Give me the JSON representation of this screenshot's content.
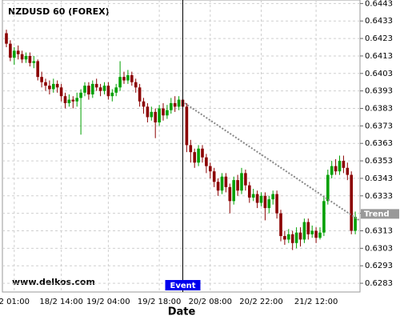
{
  "chart_data": {
    "type": "candlestick",
    "title": "NZDUSD 60 (FOREX)",
    "watermark": "www.delkos.com",
    "x_label": "Date",
    "categories": [
      null,
      null,
      "2 01:00",
      null,
      null,
      null,
      null,
      null,
      null,
      null,
      null,
      null,
      null,
      null,
      "18/2 14:00",
      null,
      null,
      null,
      null,
      null,
      null,
      null,
      null,
      null,
      null,
      null,
      "19/2 04:00",
      null,
      null,
      null,
      null,
      null,
      null,
      null,
      null,
      null,
      null,
      null,
      null,
      "19/2 18:00",
      null,
      null,
      null,
      null,
      null,
      null,
      null,
      null,
      null,
      null,
      null,
      null,
      "20/2 08:00",
      null,
      null,
      null,
      null,
      null,
      null,
      null,
      null,
      null,
      null,
      null,
      null,
      "20/2 22:00",
      null,
      null,
      null,
      null,
      null,
      null,
      null,
      null,
      null,
      null,
      null,
      null,
      null,
      "21/2 12:00",
      null,
      null,
      null,
      null,
      null,
      null,
      null,
      null,
      null,
      null
    ],
    "open": [
      0.6426,
      0.642,
      0.6412,
      0.6416,
      0.6414,
      0.6411,
      0.6413,
      0.6409,
      0.641,
      0.6401,
      0.6398,
      0.6396,
      0.6394,
      0.6397,
      0.6395,
      0.639,
      0.6386,
      0.6388,
      0.6387,
      0.6389,
      0.6392,
      0.6396,
      0.6391,
      0.6397,
      0.6395,
      0.6393,
      0.6396,
      0.639,
      0.6392,
      0.6395,
      0.6401,
      0.6399,
      0.6402,
      0.6398,
      0.6395,
      0.6387,
      0.6384,
      0.6378,
      0.6381,
      0.6375,
      0.6383,
      0.6379,
      0.6382,
      0.6386,
      0.6384,
      0.6388,
      0.6384,
      0.6362,
      0.6358,
      0.6352,
      0.636,
      0.6355,
      0.635,
      0.6347,
      0.6341,
      0.6336,
      0.6344,
      0.6338,
      0.633,
      0.6342,
      0.6336,
      0.6346,
      0.6339,
      0.6332,
      0.6334,
      0.6329,
      0.6333,
      0.6326,
      0.6331,
      0.6334,
      0.6323,
      0.631,
      0.6308,
      0.6311,
      0.6306,
      0.6312,
      0.6308,
      0.6318,
      0.6311,
      0.6313,
      0.6309,
      0.6312,
      0.633,
      0.6345,
      0.635,
      0.6347,
      0.6353,
      0.6349,
      0.6345,
      0.6313
    ],
    "high": [
      0.6428,
      0.6422,
      0.6418,
      0.6419,
      0.6416,
      0.6415,
      0.6415,
      0.6413,
      0.6411,
      0.6404,
      0.64,
      0.6399,
      0.64,
      0.6399,
      0.6397,
      0.6392,
      0.6391,
      0.639,
      0.6392,
      0.6394,
      0.6398,
      0.6398,
      0.6399,
      0.64,
      0.6397,
      0.6398,
      0.6398,
      0.6394,
      0.6397,
      0.641,
      0.6404,
      0.6405,
      0.6404,
      0.64,
      0.6397,
      0.6389,
      0.6386,
      0.6384,
      0.6383,
      0.6385,
      0.6386,
      0.6385,
      0.6389,
      0.639,
      0.639,
      0.639,
      0.6386,
      0.6365,
      0.636,
      0.6362,
      0.6362,
      0.6357,
      0.6352,
      0.6349,
      0.6343,
      0.6346,
      0.6346,
      0.634,
      0.6344,
      0.6345,
      0.6349,
      0.6348,
      0.6341,
      0.6337,
      0.6336,
      0.6335,
      0.6335,
      0.6333,
      0.6336,
      0.6336,
      0.6325,
      0.6313,
      0.6314,
      0.6313,
      0.6315,
      0.6315,
      0.632,
      0.632,
      0.6316,
      0.6315,
      0.6315,
      0.6333,
      0.6348,
      0.6353,
      0.6354,
      0.6356,
      0.6356,
      0.6352,
      0.6347,
      0.6324
    ],
    "low": [
      0.6418,
      0.641,
      0.6408,
      0.6411,
      0.6409,
      0.6409,
      0.6407,
      0.6406,
      0.6399,
      0.6395,
      0.6393,
      0.6391,
      0.6392,
      0.6392,
      0.6387,
      0.6383,
      0.6384,
      0.6383,
      0.6384,
      0.6368,
      0.639,
      0.6388,
      0.6389,
      0.6393,
      0.639,
      0.6391,
      0.6388,
      0.6387,
      0.639,
      0.6393,
      0.6397,
      0.6397,
      0.6396,
      0.6392,
      0.6384,
      0.638,
      0.6375,
      0.6376,
      0.6366,
      0.6373,
      0.6376,
      0.6377,
      0.638,
      0.6381,
      0.6382,
      0.6381,
      0.6358,
      0.6352,
      0.6349,
      0.635,
      0.6352,
      0.6346,
      0.6343,
      0.6338,
      0.6333,
      0.6334,
      0.6335,
      0.6323,
      0.6328,
      0.6333,
      0.6334,
      0.6336,
      0.6329,
      0.633,
      0.6326,
      0.6327,
      0.6319,
      0.6323,
      0.6328,
      0.632,
      0.6307,
      0.6305,
      0.6306,
      0.6302,
      0.6303,
      0.6304,
      0.6306,
      0.6308,
      0.6309,
      0.6306,
      0.6308,
      0.631,
      0.6328,
      0.6343,
      0.6345,
      0.6345,
      0.6346,
      0.6342,
      0.6311,
      0.6311
    ],
    "close": [
      0.642,
      0.6412,
      0.6416,
      0.6414,
      0.6411,
      0.6413,
      0.6409,
      0.641,
      0.6401,
      0.6398,
      0.6396,
      0.6394,
      0.6397,
      0.6395,
      0.639,
      0.6386,
      0.6388,
      0.6387,
      0.6389,
      0.6392,
      0.6396,
      0.6391,
      0.6397,
      0.6395,
      0.6393,
      0.6396,
      0.639,
      0.6392,
      0.6395,
      0.6401,
      0.6399,
      0.6402,
      0.6398,
      0.6395,
      0.6387,
      0.6384,
      0.6378,
      0.6381,
      0.6375,
      0.6383,
      0.6379,
      0.6382,
      0.6386,
      0.6384,
      0.6388,
      0.6384,
      0.6362,
      0.6358,
      0.6352,
      0.636,
      0.6355,
      0.635,
      0.6347,
      0.6341,
      0.6336,
      0.6344,
      0.6338,
      0.633,
      0.6342,
      0.6336,
      0.6346,
      0.6339,
      0.6332,
      0.6334,
      0.6329,
      0.6333,
      0.6326,
      0.6331,
      0.6334,
      0.6323,
      0.631,
      0.6308,
      0.6311,
      0.6306,
      0.6312,
      0.6308,
      0.6318,
      0.6311,
      0.6313,
      0.6309,
      0.6312,
      0.633,
      0.6345,
      0.635,
      0.6347,
      0.6353,
      0.6349,
      0.6345,
      0.6313,
      0.6321
    ],
    "up_color": "#00a000",
    "down_color": "#8b0000",
    "ylim": [
      0.6278,
      0.6445
    ],
    "yticks": [
      0.6443,
      0.6433,
      0.6423,
      0.6413,
      0.6403,
      0.6393,
      0.6383,
      0.6373,
      0.6363,
      0.6353,
      0.6343,
      0.6333,
      0.6323,
      0.6313,
      0.6303,
      0.6293,
      0.6283
    ],
    "grid": true,
    "event": {
      "label": "Event",
      "index": 45
    },
    "trend": {
      "label": "Trend",
      "x": [
        45.5,
        90
      ],
      "y": [
        0.6386,
        0.6319
      ]
    }
  }
}
